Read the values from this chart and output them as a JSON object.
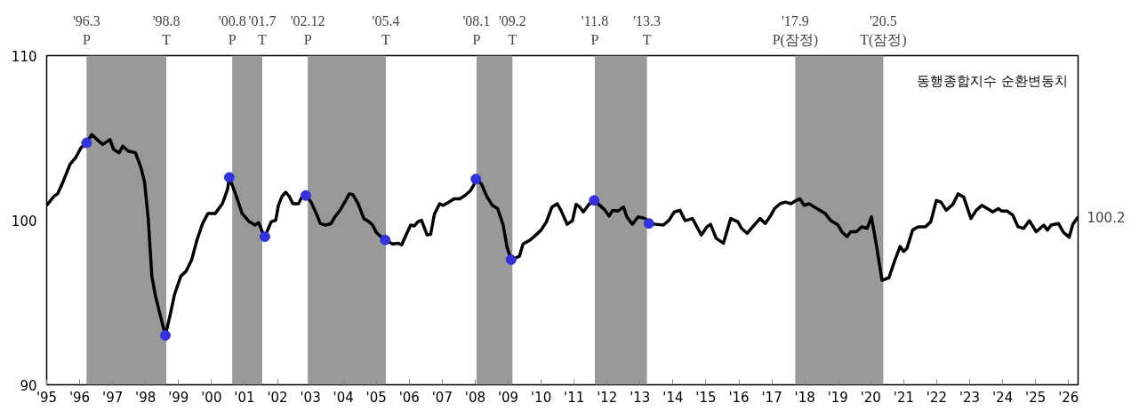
{
  "chart_data": {
    "type": "line",
    "xlim": [
      1995,
      2026.29
    ],
    "ylim": [
      90,
      110
    ],
    "yticks": [
      90,
      100,
      110
    ],
    "xticks": [
      {
        "value": 1995,
        "label": "'95"
      },
      {
        "value": 1996,
        "label": "'96"
      },
      {
        "value": 1997,
        "label": "'97"
      },
      {
        "value": 1998,
        "label": "'98"
      },
      {
        "value": 1999,
        "label": "'99"
      },
      {
        "value": 2000,
        "label": "'00"
      },
      {
        "value": 2001,
        "label": "'01"
      },
      {
        "value": 2002,
        "label": "'02"
      },
      {
        "value": 2003,
        "label": "'03"
      },
      {
        "value": 2004,
        "label": "'04"
      },
      {
        "value": 2005,
        "label": "'05"
      },
      {
        "value": 2006,
        "label": "'06"
      },
      {
        "value": 2007,
        "label": "'07"
      },
      {
        "value": 2008,
        "label": "'08"
      },
      {
        "value": 2009,
        "label": "'09"
      },
      {
        "value": 2010,
        "label": "'10"
      },
      {
        "value": 2011,
        "label": "'11"
      },
      {
        "value": 2012,
        "label": "'12"
      },
      {
        "value": 2013,
        "label": "'13"
      },
      {
        "value": 2014,
        "label": "'14"
      },
      {
        "value": 2015,
        "label": "'15"
      },
      {
        "value": 2016,
        "label": "'16"
      },
      {
        "value": 2017,
        "label": "'17"
      },
      {
        "value": 2018,
        "label": "'18"
      },
      {
        "value": 2019,
        "label": "'19"
      },
      {
        "value": 2020,
        "label": "'20"
      },
      {
        "value": 2021,
        "label": "'21"
      },
      {
        "value": 2022,
        "label": "'22"
      },
      {
        "value": 2023,
        "label": "'23"
      },
      {
        "value": 2024,
        "label": "'24"
      },
      {
        "value": 2025,
        "label": "'25"
      },
      {
        "value": 2026,
        "label": "'26"
      }
    ],
    "grid": false,
    "legend": false,
    "line_style": "solid",
    "series": [
      {
        "name": "동행종합지수 순환변동치",
        "type": "line",
        "color": "#000000",
        "x": [
          1995.0,
          1995.22,
          1995.33,
          1995.49,
          1995.71,
          1995.88,
          1996.04,
          1996.21,
          1996.37,
          1996.53,
          1996.7,
          1996.92,
          1997.03,
          1997.2,
          1997.31,
          1997.47,
          1997.69,
          1997.86,
          1997.97,
          1998.08,
          1998.19,
          1998.3,
          1998.46,
          1998.6,
          1998.74,
          1998.88,
          1999.07,
          1999.23,
          1999.4,
          1999.56,
          1999.73,
          1999.89,
          2000.11,
          2000.33,
          2000.49,
          2000.54,
          2000.71,
          2000.93,
          2001.15,
          2001.32,
          2001.43,
          2001.54,
          2001.62,
          2001.81,
          2001.95,
          2002.03,
          2002.14,
          2002.25,
          2002.36,
          2002.47,
          2002.64,
          2002.75,
          2002.86,
          2003.02,
          2003.19,
          2003.3,
          2003.46,
          2003.63,
          2003.74,
          2003.9,
          2004.07,
          2004.18,
          2004.29,
          2004.45,
          2004.62,
          2004.78,
          2004.89,
          2005.0,
          2005.14,
          2005.27,
          2005.49,
          2005.66,
          2005.77,
          2005.88,
          2006.04,
          2006.15,
          2006.26,
          2006.37,
          2006.54,
          2006.65,
          2006.76,
          2006.92,
          2007.03,
          2007.2,
          2007.36,
          2007.53,
          2007.69,
          2007.86,
          2007.97,
          2008.02,
          2008.19,
          2008.35,
          2008.52,
          2008.68,
          2008.85,
          2008.96,
          2009.09,
          2009.34,
          2009.45,
          2009.67,
          2009.84,
          2010.0,
          2010.16,
          2010.33,
          2010.49,
          2010.6,
          2010.79,
          2010.95,
          2011.06,
          2011.17,
          2011.28,
          2011.45,
          2011.61,
          2011.78,
          2011.94,
          2012.06,
          2012.17,
          2012.33,
          2012.5,
          2012.6,
          2012.77,
          2012.94,
          2013.16,
          2013.27,
          2013.49,
          2013.71,
          2013.88,
          2014.04,
          2014.21,
          2014.37,
          2014.59,
          2014.86,
          2015.03,
          2015.14,
          2015.31,
          2015.53,
          2015.75,
          2015.97,
          2016.08,
          2016.25,
          2016.42,
          2016.64,
          2016.8,
          2016.97,
          2017.08,
          2017.25,
          2017.41,
          2017.58,
          2017.74,
          2017.85,
          2017.98,
          2018.13,
          2018.29,
          2018.46,
          2018.62,
          2018.79,
          2019.01,
          2019.12,
          2019.28,
          2019.39,
          2019.56,
          2019.73,
          2019.89,
          2020.02,
          2020.17,
          2020.34,
          2020.55,
          2020.72,
          2020.89,
          2021.0,
          2021.1,
          2021.27,
          2021.44,
          2021.66,
          2021.82,
          2021.99,
          2022.13,
          2022.29,
          2022.49,
          2022.65,
          2022.82,
          2023.04,
          2023.2,
          2023.37,
          2023.54,
          2023.7,
          2023.87,
          2023.98,
          2024.14,
          2024.31,
          2024.47,
          2024.64,
          2024.81,
          2025.02,
          2025.25,
          2025.36,
          2025.47,
          2025.69,
          2025.85,
          2026.02,
          2026.13,
          2026.29
        ],
        "values": [
          100.9,
          101.45,
          101.6,
          102.3,
          103.4,
          103.8,
          104.4,
          104.7,
          105.2,
          104.9,
          104.6,
          104.9,
          104.3,
          104.1,
          104.5,
          104.2,
          104.1,
          103.2,
          102.3,
          100.1,
          96.6,
          95.4,
          94.1,
          93.0,
          94.2,
          95.5,
          96.6,
          96.9,
          97.6,
          98.8,
          99.8,
          100.4,
          100.4,
          101.0,
          101.9,
          102.6,
          101.7,
          100.4,
          99.9,
          99.7,
          99.85,
          99.3,
          99.0,
          99.9,
          100.0,
          100.9,
          101.45,
          101.7,
          101.45,
          101.0,
          101.0,
          101.45,
          101.5,
          101.1,
          100.35,
          99.8,
          99.7,
          99.8,
          100.2,
          100.6,
          101.2,
          101.6,
          101.55,
          101.0,
          100.1,
          99.9,
          99.7,
          99.25,
          99.0,
          98.8,
          98.55,
          98.6,
          98.5,
          99.0,
          99.7,
          99.65,
          99.9,
          100.0,
          99.1,
          99.15,
          100.35,
          101.0,
          100.9,
          101.1,
          101.3,
          101.3,
          101.5,
          101.8,
          102.2,
          102.5,
          102.2,
          101.45,
          100.9,
          100.7,
          99.7,
          98.4,
          97.6,
          97.8,
          98.55,
          98.8,
          99.1,
          99.4,
          99.9,
          100.8,
          101.0,
          100.6,
          99.75,
          99.97,
          100.96,
          100.8,
          100.5,
          100.96,
          101.2,
          100.9,
          100.6,
          100.25,
          100.6,
          100.55,
          100.8,
          100.2,
          99.75,
          100.2,
          100.1,
          99.8,
          99.75,
          99.7,
          100.0,
          100.5,
          100.6,
          99.97,
          100.1,
          99.1,
          99.6,
          99.75,
          98.9,
          98.6,
          100.1,
          99.9,
          99.5,
          99.2,
          99.6,
          100.1,
          99.8,
          100.3,
          100.7,
          101.0,
          101.1,
          101.0,
          101.2,
          101.3,
          100.9,
          101.0,
          100.8,
          100.6,
          100.4,
          99.97,
          99.7,
          99.3,
          99.0,
          99.3,
          99.3,
          99.6,
          99.5,
          100.2,
          98.5,
          96.35,
          96.5,
          97.5,
          98.4,
          98.1,
          98.3,
          99.4,
          99.6,
          99.6,
          99.9,
          101.2,
          101.1,
          100.6,
          100.96,
          101.6,
          101.4,
          100.1,
          100.6,
          100.9,
          100.7,
          100.5,
          100.7,
          100.55,
          100.55,
          100.3,
          99.6,
          99.5,
          99.97,
          99.3,
          99.7,
          99.4,
          99.7,
          99.8,
          99.25,
          98.97,
          99.75,
          100.2
        ]
      },
      {
        "type": "scatter",
        "marker": "circle",
        "color": "#3333dd",
        "x": [
          1996.21,
          1998.6,
          2000.54,
          2001.62,
          2002.86,
          2005.27,
          2008.02,
          2009.09,
          2011.61,
          2013.27
        ],
        "values": [
          104.7,
          93.0,
          102.6,
          99.0,
          101.5,
          98.8,
          102.5,
          97.6,
          101.2,
          99.8
        ]
      }
    ],
    "bands": [
      {
        "axis": "x",
        "from": 1996.21,
        "to": 1998.63,
        "color": "#999999"
      },
      {
        "axis": "x",
        "from": 2000.63,
        "to": 2001.54,
        "color": "#999999"
      },
      {
        "axis": "x",
        "from": 2002.92,
        "to": 2005.29,
        "color": "#999999"
      },
      {
        "axis": "x",
        "from": 2008.04,
        "to": 2009.13,
        "color": "#999999"
      },
      {
        "axis": "x",
        "from": 2011.63,
        "to": 2013.21,
        "color": "#999999"
      },
      {
        "axis": "x",
        "from": 2017.71,
        "to": 2020.38,
        "color": "#999999"
      }
    ],
    "annotations": [
      "'96.3\nP",
      "'98.8\nT",
      "'00.8\nP",
      "'01.7\nT",
      "'02.12\nP",
      "'05.4\nT",
      "'08.1\nP",
      "'09.2\nT",
      "'11.8\nP",
      "'13.3\nT",
      "'17.9\nP(잠정)",
      "'20.5\nT(잠정)",
      {
        "text": "100.2",
        "x": 2026.29,
        "y": 100.2
      }
    ]
  }
}
